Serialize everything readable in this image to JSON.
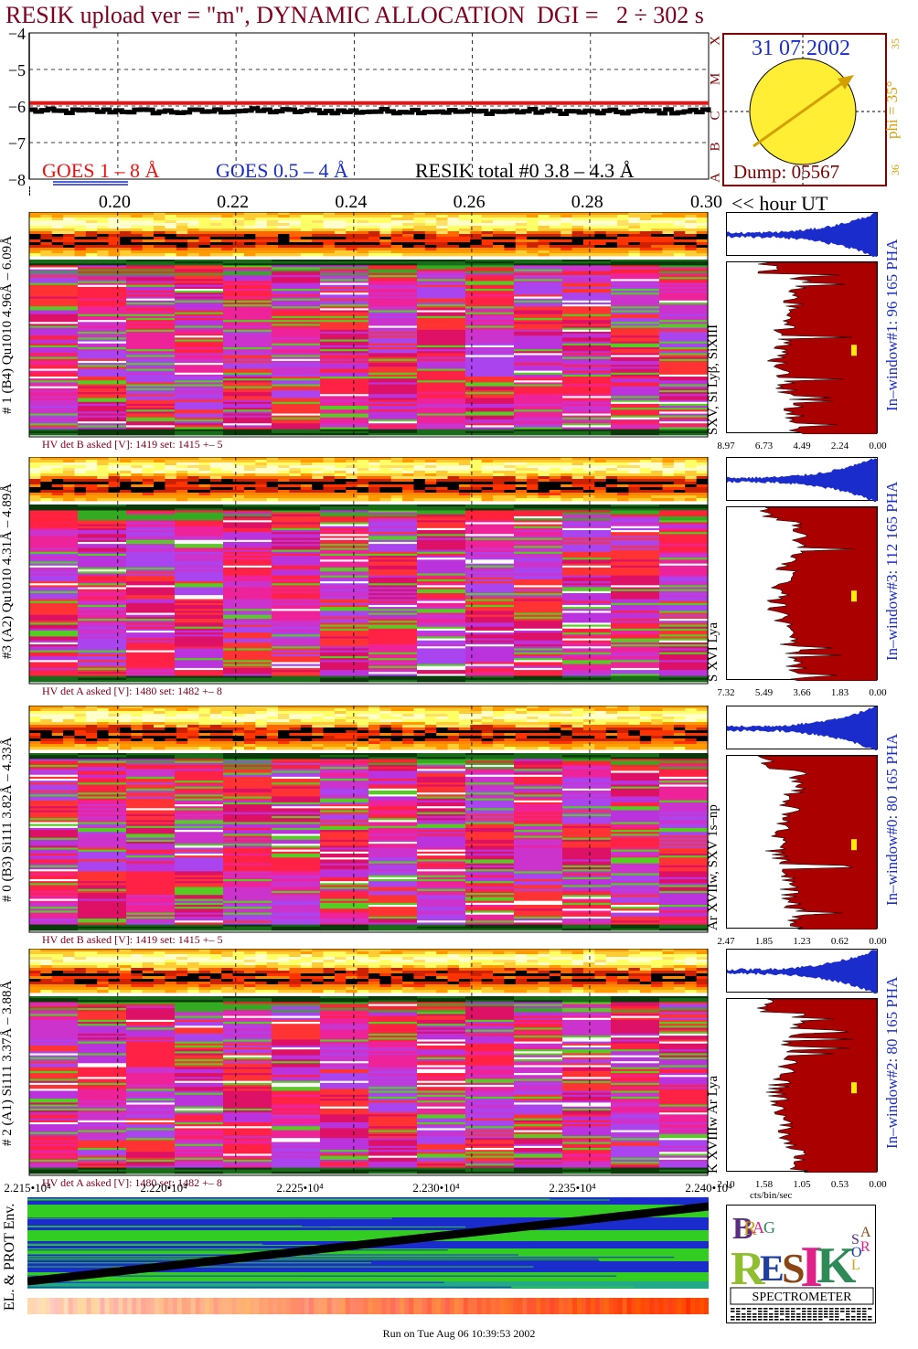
{
  "header": {
    "title": "RESIK upload ver = \"m\", DYNAMIC ALLOCATION  DGI =   2 ÷ 302 s"
  },
  "goes_panel": {
    "legend_goes_long": "GOES 1 – 8 Å",
    "legend_goes_short": "GOES 0.5 – 4 Å",
    "legend_resik": "RESIK total #0  3.8 – 4.3 Å",
    "flare_classes": [
      "X",
      "M",
      "C",
      "B",
      "A"
    ]
  },
  "time_axis": {
    "unit_label": "<< hour UT"
  },
  "sun_panel": {
    "date": "31 07 2002",
    "phi_label": "phi = 35°",
    "phi_top": "35",
    "phi_bottom": "36",
    "dump": "Dump: 05567",
    "colors": {
      "disk": "#ffee33",
      "arrow": "#d4a000",
      "text_blue": "#1a2dcc",
      "frame": "#800000"
    }
  },
  "channels": [
    {
      "id": "ch1",
      "side_label": "# 1 (B4) Qu1010 4.96Å – 6.09Å",
      "lines_label": "SXV, Si Lyβ, SiXIII",
      "hv": "HV det B asked [V]:  1419 set:  1415  +–   5",
      "inwin": "In–window#1:   96 165 PHA",
      "xticks": [
        "8.97",
        "6.73",
        "4.49",
        "2.24",
        "0.00"
      ]
    },
    {
      "id": "ch3",
      "side_label": "#3 (A2) Qu1010  4.31Å – 4.89Å",
      "lines_label": "S XVI Lya",
      "hv": "HV det A asked [V]:  1480 set:  1482  +–    8",
      "inwin": "In–window#3:  112 165 PHA",
      "xticks": [
        "7.32",
        "5.49",
        "3.66",
        "1.83",
        "0.00"
      ]
    },
    {
      "id": "ch0",
      "side_label": "# 0 (B3) Si111  3.82Å – 4.33Å",
      "lines_label": "Ar XVIIw,  SXV 1s–np",
      "hv": "HV det B asked [V]:  1419 set:  1415  +–   5",
      "inwin": "In–window#0:   80 165 PHA",
      "xticks": [
        "2.47",
        "1.85",
        "1.23",
        "0.62",
        "0.00"
      ]
    },
    {
      "id": "ch2",
      "side_label": "# 2 (A1) Si111  3.37Å – 3.88Å",
      "lines_label": "K XVIIIw  Ar Lya",
      "hv": "HV det A asked [V]:  1480 set:  1482  +–    8",
      "inwin": "In–window#2:   80 165 PHA",
      "xticks": [
        "2.10",
        "1.58",
        "1.05",
        "0.53",
        "0.00"
      ],
      "x_unit": "cts/bin/sec"
    }
  ],
  "seconds_axis": {
    "ticks": [
      "2.215•10⁴",
      "2.220•10⁴",
      "2.225•10⁴",
      "2.230•10⁴",
      "2.235•10⁴",
      "2.240•10⁴"
    ]
  },
  "env_panel": {
    "label": "EL. & PROT Env."
  },
  "logo": {
    "letters": [
      "B",
      "R",
      "A",
      "G",
      "R",
      "E",
      "S",
      "I",
      "K",
      "S",
      "O",
      "L",
      "A",
      "R"
    ],
    "spectrometer": "SPECTROMETER",
    "colors": [
      "#5a2d82",
      "#d4a017",
      "#e0218a",
      "#2e8b57",
      "#8b4513",
      "#1e3fa0"
    ]
  },
  "footer": {
    "run_text": "Run on Tue Aug 06 10:39:53 2002"
  },
  "chart_data": [
    {
      "type": "line",
      "x": [
        0.185,
        0.19,
        0.2,
        0.21,
        0.22,
        0.23,
        0.24,
        0.25,
        0.26,
        0.27,
        0.28,
        0.29,
        0.3
      ],
      "series": [
        {
          "name": "GOES 1 – 8 Å",
          "color": "#ee1111",
          "values": [
            -5.92,
            -5.92,
            -5.92,
            -5.92,
            -5.92,
            -5.92,
            -5.92,
            -5.92,
            -5.92,
            -5.92,
            -5.92,
            -5.92,
            -5.92
          ]
        },
        {
          "name": "RESIK total #0  3.8 – 4.3 Å",
          "color": "#000000",
          "values": [
            -6.12,
            -6.15,
            -6.13,
            -6.16,
            -6.12,
            -6.14,
            -6.15,
            -6.13,
            -6.16,
            -6.14,
            -6.17,
            -6.15,
            -6.14
          ]
        }
      ],
      "xlim": [
        0.185,
        0.3
      ],
      "xticks": [
        0.2,
        0.22,
        0.24,
        0.26,
        0.28,
        0.3
      ],
      "ylim": [
        -8,
        -4
      ],
      "yticks": [
        -4,
        -5,
        -6,
        -7,
        -8
      ],
      "xlabel": "<< hour UT",
      "grid": true
    },
    {
      "type": "area",
      "x_unit": "cts/bin/sec",
      "panels": [
        "#1",
        "#3",
        "#0",
        "#2"
      ],
      "xlim_max": [
        8.97,
        7.32,
        2.47,
        2.1
      ]
    },
    {
      "type": "heatmap",
      "x_range_seconds": [
        22150,
        22400
      ],
      "xticks": [
        "2.215•10⁴",
        "2.220•10⁴",
        "2.225•10⁴",
        "2.230•10⁴",
        "2.235•10⁴",
        "2.240•10⁴"
      ]
    }
  ]
}
